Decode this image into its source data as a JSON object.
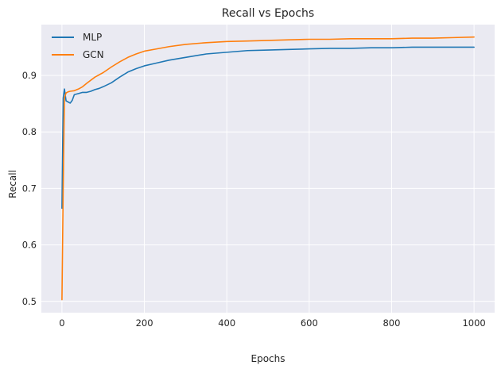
{
  "chart_data": {
    "type": "line",
    "title": "Recall vs Epochs",
    "xlabel": "Epochs",
    "ylabel": "Recall",
    "xlim": [
      -50,
      1050
    ],
    "ylim": [
      0.48,
      0.99
    ],
    "xticks": [
      0,
      200,
      400,
      600,
      800,
      1000
    ],
    "yticks": [
      0.5,
      0.6,
      0.7,
      0.8,
      0.9
    ],
    "grid": true,
    "legend": "top-left",
    "background": "#eaeaf2",
    "series": [
      {
        "name": "MLP",
        "color": "#1f77b4",
        "x": [
          0,
          3,
          6,
          10,
          15,
          20,
          25,
          30,
          40,
          50,
          60,
          70,
          80,
          90,
          100,
          120,
          140,
          160,
          180,
          200,
          230,
          260,
          300,
          350,
          400,
          450,
          500,
          550,
          600,
          650,
          700,
          750,
          800,
          850,
          900,
          950,
          1000
        ],
        "y": [
          0.665,
          0.86,
          0.876,
          0.855,
          0.853,
          0.851,
          0.856,
          0.866,
          0.868,
          0.87,
          0.87,
          0.872,
          0.875,
          0.877,
          0.88,
          0.887,
          0.897,
          0.906,
          0.912,
          0.917,
          0.922,
          0.927,
          0.932,
          0.938,
          0.941,
          0.944,
          0.945,
          0.946,
          0.947,
          0.948,
          0.948,
          0.949,
          0.949,
          0.95,
          0.95,
          0.95,
          0.95
        ]
      },
      {
        "name": "GCN",
        "color": "#ff7f0e",
        "x": [
          0,
          3,
          6,
          10,
          15,
          20,
          30,
          40,
          50,
          60,
          80,
          100,
          120,
          140,
          160,
          180,
          200,
          230,
          260,
          300,
          350,
          400,
          450,
          500,
          550,
          600,
          650,
          700,
          750,
          800,
          850,
          900,
          950,
          1000
        ],
        "y": [
          0.503,
          0.7,
          0.86,
          0.869,
          0.871,
          0.872,
          0.873,
          0.876,
          0.88,
          0.886,
          0.897,
          0.905,
          0.915,
          0.924,
          0.932,
          0.938,
          0.943,
          0.947,
          0.951,
          0.955,
          0.958,
          0.96,
          0.961,
          0.962,
          0.963,
          0.964,
          0.964,
          0.965,
          0.965,
          0.965,
          0.966,
          0.966,
          0.967,
          0.968
        ]
      }
    ]
  }
}
